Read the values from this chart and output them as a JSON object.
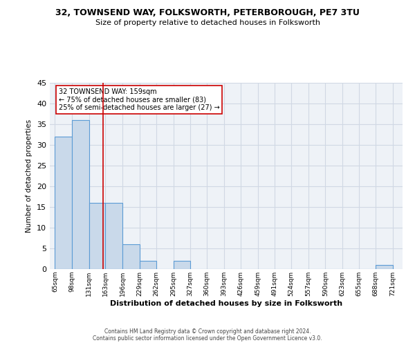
{
  "title": "32, TOWNSEND WAY, FOLKSWORTH, PETERBOROUGH, PE7 3TU",
  "subtitle": "Size of property relative to detached houses in Folksworth",
  "xlabel": "Distribution of detached houses by size in Folksworth",
  "ylabel": "Number of detached properties",
  "bar_color": "#c9d9ea",
  "bar_edge_color": "#5b9bd5",
  "bar_left_edges": [
    65,
    98,
    131,
    163,
    196,
    229,
    262,
    295,
    327,
    360,
    393,
    426,
    459,
    491,
    524,
    557,
    590,
    623,
    655,
    688
  ],
  "bar_widths": [
    33,
    33,
    32,
    33,
    33,
    33,
    33,
    32,
    33,
    33,
    33,
    33,
    32,
    33,
    33,
    33,
    32,
    33,
    33,
    33
  ],
  "bar_heights": [
    32,
    36,
    16,
    16,
    6,
    2,
    0,
    2,
    0,
    0,
    0,
    0,
    0,
    0,
    0,
    0,
    0,
    0,
    0,
    1
  ],
  "xtick_labels": [
    "65sqm",
    "98sqm",
    "131sqm",
    "163sqm",
    "196sqm",
    "229sqm",
    "262sqm",
    "295sqm",
    "327sqm",
    "360sqm",
    "393sqm",
    "426sqm",
    "459sqm",
    "491sqm",
    "524sqm",
    "557sqm",
    "590sqm",
    "623sqm",
    "655sqm",
    "688sqm",
    "721sqm"
  ],
  "xtick_positions": [
    65,
    98,
    131,
    163,
    196,
    229,
    262,
    295,
    327,
    360,
    393,
    426,
    459,
    491,
    524,
    557,
    590,
    623,
    655,
    688,
    721
  ],
  "ylim": [
    0,
    45
  ],
  "xlim": [
    55,
    740
  ],
  "vline_x": 159,
  "vline_color": "#cc0000",
  "annotation_text": "32 TOWNSEND WAY: 159sqm\n← 75% of detached houses are smaller (83)\n25% of semi-detached houses are larger (27) →",
  "annotation_box_color": "#ffffff",
  "annotation_box_edge_color": "#cc0000",
  "grid_color": "#d0d8e4",
  "bg_color": "#eef2f7",
  "footer_line1": "Contains HM Land Registry data © Crown copyright and database right 2024.",
  "footer_line2": "Contains public sector information licensed under the Open Government Licence v3.0."
}
